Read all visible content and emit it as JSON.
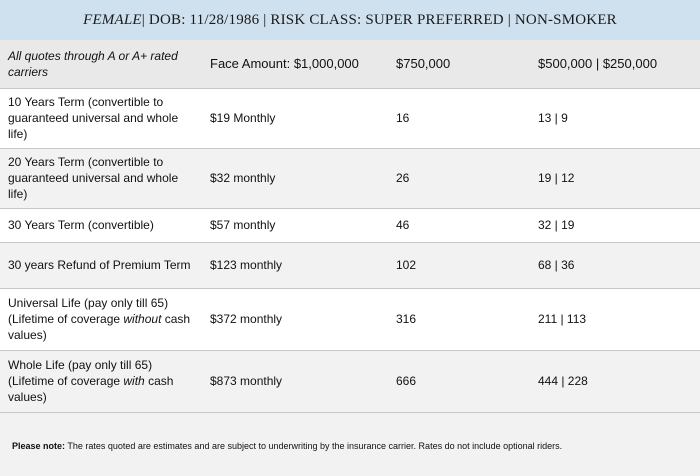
{
  "title": {
    "gender": "FEMALE",
    "rest": " | DOB: 11/28/1986 | RISK CLASS: SUPER PREFERRED | NON-SMOKER"
  },
  "header": {
    "col1": "All quotes through A or A+ rated carriers",
    "col2": "Face Amount: $1,000,000",
    "col3": "$750,000",
    "col4": "$500,000 | $250,000"
  },
  "rows": [
    {
      "plan": "10 Years Term (convertible to guaranteed universal and whole life)",
      "c1": "$19 Monthly",
      "c2": "16",
      "c3": "13 | 9"
    },
    {
      "plan": "20 Years Term (convertible to guaranteed universal and whole life)",
      "c1": "$32 monthly",
      "c2": "26",
      "c3": "19 | 12"
    },
    {
      "plan": "30 Years Term (convertible)",
      "c1": "$57 monthly",
      "c2": "46",
      "c3": "32 | 19"
    },
    {
      "plan": "30 years Refund of Premium Term",
      "c1": "$123 monthly",
      "c2": "102",
      "c3": "68 | 36"
    },
    {
      "plan_a": "Universal Life (pay only till 65) (Lifetime of coverage ",
      "plan_em": "without",
      "plan_b": " cash values)",
      "c1": "$372 monthly",
      "c2": "316",
      "c3": "211 | 113"
    },
    {
      "plan_a": "Whole Life (pay only till 65) (Lifetime of coverage ",
      "plan_em": "with",
      "plan_b": " cash values)",
      "c1": "$873 monthly",
      "c2": "666",
      "c3": "444 | 228"
    }
  ],
  "note": {
    "label": "Please note:",
    "text": " The rates quoted are estimates and are subject to underwriting by the insurance carrier. Rates do not include optional riders."
  }
}
